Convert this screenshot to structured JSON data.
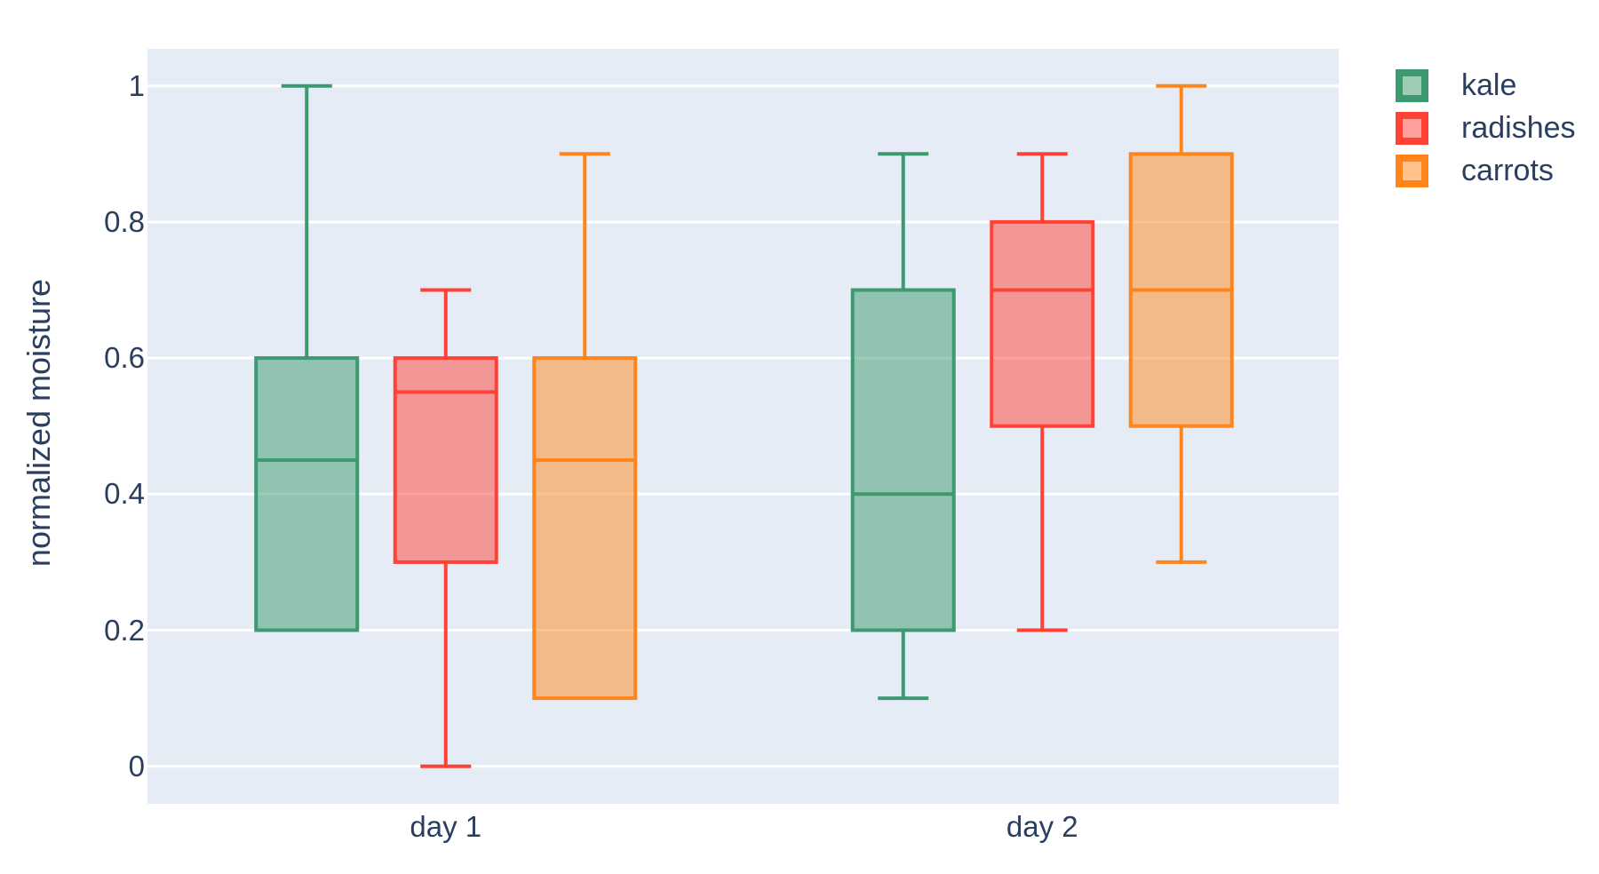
{
  "figure": {
    "title": "",
    "colors": {
      "text": "#2a3f5f",
      "plot_background": "#e5ecf6",
      "gridline": "#ffffff",
      "page_background": "#ffffff"
    }
  },
  "chart_data": {
    "type": "box",
    "boxmode": "group",
    "title": "",
    "xlabel": "",
    "ylabel": "normalized moisture",
    "categories": [
      "day 1",
      "day 2"
    ],
    "y_ticks": [
      0,
      0.2,
      0.4,
      0.6,
      0.8,
      1
    ],
    "y_tick_labels": [
      "0",
      "0.2",
      "0.4",
      "0.6",
      "0.8",
      "1"
    ],
    "ylim": [
      -0.055,
      1.055
    ],
    "grid": true,
    "legend_position": "top-right",
    "series": [
      {
        "name": "kale",
        "color": "#3D9970",
        "fill_opacity": 0.5,
        "boxes": [
          {
            "category": "day 1",
            "min": 0.2,
            "q1": 0.2,
            "median": 0.45,
            "q3": 0.6,
            "max": 1.0
          },
          {
            "category": "day 2",
            "min": 0.1,
            "q1": 0.2,
            "median": 0.4,
            "q3": 0.7,
            "max": 0.9
          }
        ]
      },
      {
        "name": "radishes",
        "color": "#FF4136",
        "fill_opacity": 0.5,
        "boxes": [
          {
            "category": "day 1",
            "min": 0.0,
            "q1": 0.3,
            "median": 0.55,
            "q3": 0.6,
            "max": 0.7
          },
          {
            "category": "day 2",
            "min": 0.2,
            "q1": 0.5,
            "median": 0.7,
            "q3": 0.8,
            "max": 0.9
          }
        ]
      },
      {
        "name": "carrots",
        "color": "#FF851B",
        "fill_opacity": 0.5,
        "boxes": [
          {
            "category": "day 1",
            "min": 0.1,
            "q1": 0.1,
            "median": 0.45,
            "q3": 0.6,
            "max": 0.9
          },
          {
            "category": "day 2",
            "min": 0.3,
            "q1": 0.5,
            "median": 0.7,
            "q3": 0.9,
            "max": 1.0
          }
        ]
      }
    ]
  }
}
